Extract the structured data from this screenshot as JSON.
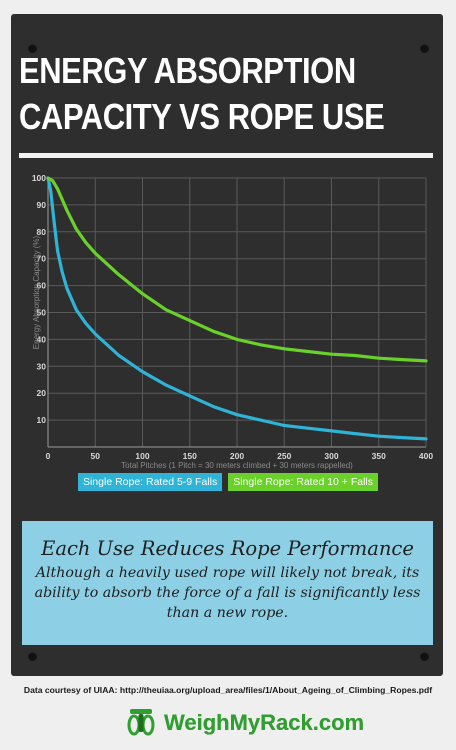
{
  "title_line1": "ENERGY ABSORPTION",
  "title_line2": "CAPACITY VS ROPE USE",
  "chart_data": {
    "type": "line",
    "xlabel": "Total Pitches (1 Pitch = 30 meters climbed + 30 meters rappelled)",
    "ylabel": "Energy Absorption Capacity (%)",
    "xlim": [
      0,
      400
    ],
    "ylim": [
      0,
      100
    ],
    "xticks": [
      0,
      50,
      100,
      150,
      200,
      250,
      300,
      350,
      400
    ],
    "yticks": [
      10,
      20,
      30,
      40,
      50,
      60,
      70,
      80,
      90,
      100
    ],
    "grid": true,
    "legend_position": "bottom",
    "series": [
      {
        "name": "Single Rope: Rated 5-9 Falls",
        "color": "#2fb3d6",
        "x": [
          0,
          3,
          6,
          10,
          15,
          20,
          30,
          40,
          50,
          75,
          100,
          125,
          150,
          175,
          200,
          225,
          250,
          275,
          300,
          325,
          350,
          375,
          400
        ],
        "y": [
          100,
          95,
          85,
          73,
          65,
          59,
          51,
          46,
          42,
          34,
          28,
          23,
          19,
          15,
          12,
          10,
          8,
          7,
          6,
          5,
          4,
          3.5,
          3
        ]
      },
      {
        "name": "Single Rope: Rated 10 + Falls",
        "color": "#6ad12a",
        "x": [
          0,
          5,
          10,
          15,
          20,
          30,
          40,
          50,
          75,
          100,
          125,
          150,
          175,
          200,
          225,
          250,
          275,
          300,
          325,
          350,
          375,
          400
        ],
        "y": [
          100,
          99,
          96,
          92,
          88,
          81,
          76,
          72,
          64,
          57,
          51,
          47,
          43,
          40,
          38,
          36.5,
          35.5,
          34.5,
          34,
          33,
          32.5,
          32
        ]
      }
    ]
  },
  "callout": {
    "heading": "Each Use Reduces Rope Performance",
    "body": "Although a heavily used rope will likely not break, its ability to absorb the force of a fall is significantly less than a new rope."
  },
  "source_text": "Data courtesy of UIAA: http://theuiaa.org/upload_area/files/1/About_Ageing_of_Climbing_Ropes.pdf",
  "brand": {
    "name": "WeighMyRack.com",
    "icon": "carabiner-rack-icon",
    "color": "#2fa02f"
  }
}
